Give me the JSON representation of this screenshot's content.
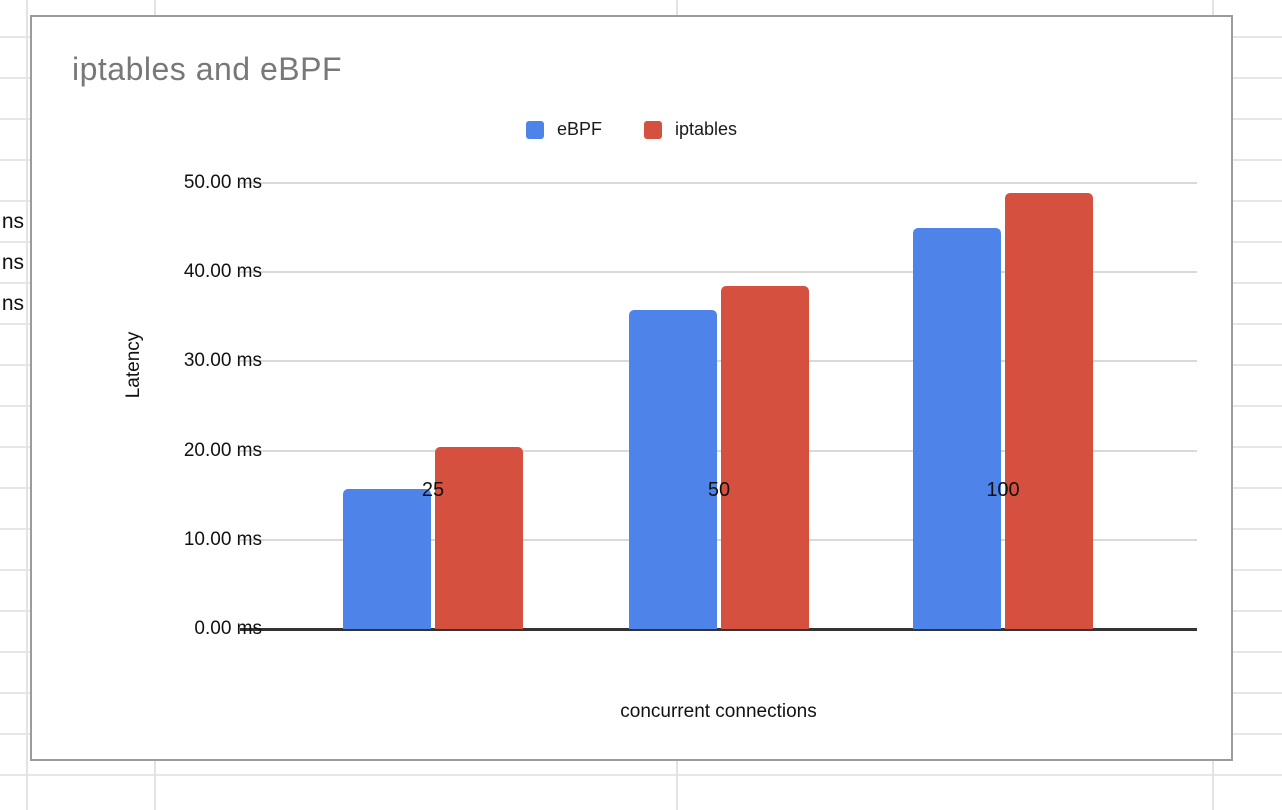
{
  "spreadsheet": {
    "clipped_cell_texts": [
      "ns",
      "ns",
      "ns"
    ]
  },
  "chart": {
    "title": "iptables and eBPF",
    "legend": {
      "items": [
        {
          "label": "eBPF",
          "color": "#4e84ea"
        },
        {
          "label": "iptables",
          "color": "#d6503f"
        }
      ]
    },
    "y_axis_title": "Latency",
    "x_axis_title": "concurrent connections"
  },
  "chart_data": {
    "type": "bar",
    "title": "iptables and eBPF",
    "categories": [
      "25",
      "50",
      "100"
    ],
    "series": [
      {
        "name": "eBPF",
        "color": "#4e84ea",
        "values": [
          15.7,
          35.8,
          44.9
        ]
      },
      {
        "name": "iptables",
        "color": "#d6503f",
        "values": [
          20.4,
          38.4,
          48.9
        ]
      }
    ],
    "xlabel": "concurrent connections",
    "ylabel": "Latency",
    "ylim": [
      0,
      50
    ],
    "yticks": [
      0,
      10,
      20,
      30,
      40,
      50
    ],
    "ytick_labels": [
      "0.00 ms",
      "10.00 ms",
      "20.00 ms",
      "30.00 ms",
      "40.00 ms",
      "50.00 ms"
    ],
    "grid": true,
    "legend_position": "top"
  }
}
